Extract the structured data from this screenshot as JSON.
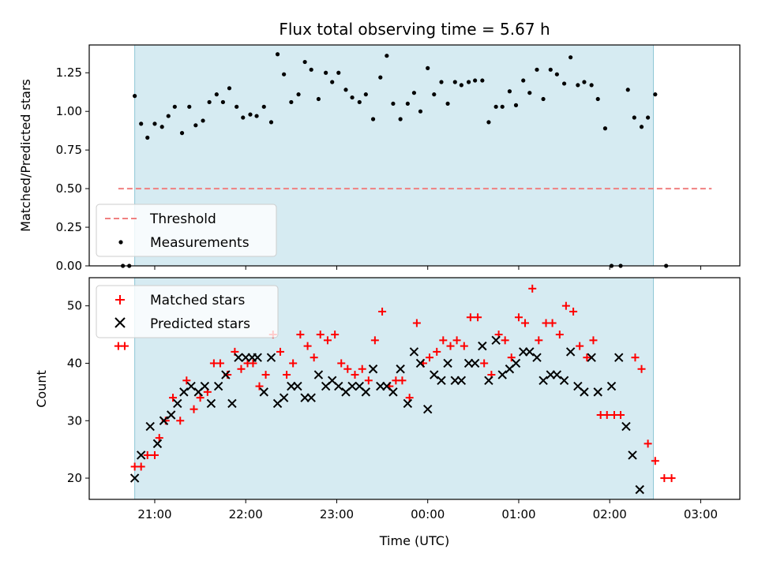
{
  "title": "Flux total observing time = 5.67 h",
  "chart_data": [
    {
      "type": "scatter",
      "ylabel": "Matched/Predicted stars",
      "ylim": [
        0,
        1.43
      ],
      "yticks": [
        "0.00",
        "0.25",
        "0.50",
        "0.75",
        "1.00",
        "1.25"
      ],
      "ytick_values": [
        0,
        0.25,
        0.5,
        0.75,
        1.0,
        1.25
      ],
      "legend_placement": "lower-left",
      "threshold": {
        "name": "Threshold",
        "value": 0.5,
        "x_start": -3.4,
        "x_end": 3.12,
        "color": "#f08080"
      },
      "measurements": {
        "name": "Measurements",
        "color": "#000000",
        "points": [
          [
            -3.35,
            0.0
          ],
          [
            -3.28,
            0.0
          ],
          [
            -3.22,
            1.1
          ],
          [
            -3.15,
            0.92
          ],
          [
            -3.08,
            0.83
          ],
          [
            -3.0,
            0.92
          ],
          [
            -2.92,
            0.9
          ],
          [
            -2.85,
            0.97
          ],
          [
            -2.78,
            1.03
          ],
          [
            -2.7,
            0.86
          ],
          [
            -2.62,
            1.03
          ],
          [
            -2.55,
            0.91
          ],
          [
            -2.47,
            0.94
          ],
          [
            -2.4,
            1.06
          ],
          [
            -2.32,
            1.11
          ],
          [
            -2.25,
            1.06
          ],
          [
            -2.18,
            1.15
          ],
          [
            -2.1,
            1.03
          ],
          [
            -2.03,
            0.96
          ],
          [
            -1.95,
            0.98
          ],
          [
            -1.88,
            0.97
          ],
          [
            -1.8,
            1.03
          ],
          [
            -1.72,
            0.93
          ],
          [
            -1.65,
            1.37
          ],
          [
            -1.58,
            1.24
          ],
          [
            -1.5,
            1.06
          ],
          [
            -1.42,
            1.11
          ],
          [
            -1.35,
            1.32
          ],
          [
            -1.28,
            1.27
          ],
          [
            -1.2,
            1.08
          ],
          [
            -1.12,
            1.25
          ],
          [
            -1.05,
            1.19
          ],
          [
            -0.98,
            1.25
          ],
          [
            -0.9,
            1.14
          ],
          [
            -0.83,
            1.09
          ],
          [
            -0.75,
            1.06
          ],
          [
            -0.68,
            1.11
          ],
          [
            -0.6,
            0.95
          ],
          [
            -0.52,
            1.22
          ],
          [
            -0.45,
            1.36
          ],
          [
            -0.38,
            1.05
          ],
          [
            -0.3,
            0.95
          ],
          [
            -0.22,
            1.05
          ],
          [
            -0.15,
            1.12
          ],
          [
            -0.08,
            1.0
          ],
          [
            0.0,
            1.28
          ],
          [
            0.07,
            1.11
          ],
          [
            0.15,
            1.19
          ],
          [
            0.22,
            1.05
          ],
          [
            0.3,
            1.19
          ],
          [
            0.37,
            1.17
          ],
          [
            0.45,
            1.19
          ],
          [
            0.52,
            1.2
          ],
          [
            0.6,
            1.2
          ],
          [
            0.67,
            0.93
          ],
          [
            0.75,
            1.03
          ],
          [
            0.82,
            1.03
          ],
          [
            0.9,
            1.13
          ],
          [
            0.97,
            1.04
          ],
          [
            1.05,
            1.2
          ],
          [
            1.12,
            1.12
          ],
          [
            1.2,
            1.27
          ],
          [
            1.27,
            1.08
          ],
          [
            1.35,
            1.27
          ],
          [
            1.42,
            1.24
          ],
          [
            1.5,
            1.18
          ],
          [
            1.57,
            1.35
          ],
          [
            1.65,
            1.17
          ],
          [
            1.72,
            1.19
          ],
          [
            1.8,
            1.17
          ],
          [
            1.87,
            1.08
          ],
          [
            1.95,
            0.89
          ],
          [
            2.02,
            0.0
          ],
          [
            2.12,
            0.0
          ],
          [
            2.2,
            1.14
          ],
          [
            2.27,
            0.96
          ],
          [
            2.35,
            0.9
          ],
          [
            2.42,
            0.96
          ],
          [
            2.5,
            1.11
          ],
          [
            2.62,
            0.0
          ]
        ]
      }
    },
    {
      "type": "scatter",
      "xlabel": "Time (UTC)",
      "ylabel": "Count",
      "ylim": [
        16.3,
        54.9
      ],
      "yticks": [
        "20",
        "30",
        "40",
        "50"
      ],
      "ytick_values": [
        20,
        30,
        40,
        50
      ],
      "legend_placement": "upper-left",
      "x_range_hours_from_midnight": [
        -3.72,
        3.43
      ],
      "xticks": [
        "21:00",
        "22:00",
        "23:00",
        "00:00",
        "01:00",
        "02:00",
        "03:00"
      ],
      "xtick_values": [
        -3,
        -2,
        -1,
        0,
        1,
        2,
        3
      ],
      "matched": {
        "name": "Matched stars",
        "color": "#ff0000",
        "points": [
          [
            -3.4,
            43
          ],
          [
            -3.33,
            43
          ],
          [
            -3.22,
            22
          ],
          [
            -3.15,
            22
          ],
          [
            -3.08,
            24
          ],
          [
            -3.0,
            24
          ],
          [
            -2.95,
            27
          ],
          [
            -2.88,
            30
          ],
          [
            -2.8,
            34
          ],
          [
            -2.72,
            30
          ],
          [
            -2.65,
            37
          ],
          [
            -2.57,
            32
          ],
          [
            -2.5,
            34
          ],
          [
            -2.42,
            35
          ],
          [
            -2.35,
            40
          ],
          [
            -2.28,
            40
          ],
          [
            -2.2,
            38
          ],
          [
            -2.12,
            42
          ],
          [
            -2.05,
            39
          ],
          [
            -1.98,
            40
          ],
          [
            -1.92,
            40
          ],
          [
            -1.85,
            36
          ],
          [
            -1.78,
            38
          ],
          [
            -1.7,
            45
          ],
          [
            -1.62,
            42
          ],
          [
            -1.55,
            38
          ],
          [
            -1.48,
            40
          ],
          [
            -1.4,
            45
          ],
          [
            -1.32,
            43
          ],
          [
            -1.25,
            41
          ],
          [
            -1.18,
            45
          ],
          [
            -1.1,
            44
          ],
          [
            -1.02,
            45
          ],
          [
            -0.95,
            40
          ],
          [
            -0.88,
            39
          ],
          [
            -0.8,
            38
          ],
          [
            -0.72,
            39
          ],
          [
            -0.65,
            37
          ],
          [
            -0.58,
            44
          ],
          [
            -0.5,
            49
          ],
          [
            -0.42,
            36
          ],
          [
            -0.35,
            37
          ],
          [
            -0.28,
            37
          ],
          [
            -0.2,
            34
          ],
          [
            -0.12,
            47
          ],
          [
            -0.05,
            40
          ],
          [
            0.02,
            41
          ],
          [
            0.1,
            42
          ],
          [
            0.17,
            44
          ],
          [
            0.25,
            43
          ],
          [
            0.32,
            44
          ],
          [
            0.4,
            43
          ],
          [
            0.47,
            48
          ],
          [
            0.55,
            48
          ],
          [
            0.62,
            40
          ],
          [
            0.7,
            38
          ],
          [
            0.78,
            45
          ],
          [
            0.85,
            44
          ],
          [
            0.92,
            41
          ],
          [
            1.0,
            48
          ],
          [
            1.07,
            47
          ],
          [
            1.15,
            53
          ],
          [
            1.22,
            44
          ],
          [
            1.3,
            47
          ],
          [
            1.37,
            47
          ],
          [
            1.45,
            45
          ],
          [
            1.52,
            50
          ],
          [
            1.6,
            49
          ],
          [
            1.67,
            43
          ],
          [
            1.75,
            41
          ],
          [
            1.82,
            44
          ],
          [
            1.9,
            31
          ],
          [
            1.97,
            31
          ],
          [
            2.05,
            31
          ],
          [
            2.12,
            31
          ],
          [
            2.28,
            41
          ],
          [
            2.35,
            39
          ],
          [
            2.42,
            26
          ],
          [
            2.5,
            23
          ],
          [
            2.6,
            20
          ],
          [
            2.68,
            20
          ]
        ]
      },
      "predicted": {
        "name": "Predicted stars",
        "color": "#000000",
        "points": [
          [
            -3.22,
            20
          ],
          [
            -3.15,
            24
          ],
          [
            -3.05,
            29
          ],
          [
            -2.97,
            26
          ],
          [
            -2.9,
            30
          ],
          [
            -2.82,
            31
          ],
          [
            -2.75,
            33
          ],
          [
            -2.68,
            35
          ],
          [
            -2.6,
            36
          ],
          [
            -2.52,
            35
          ],
          [
            -2.45,
            36
          ],
          [
            -2.38,
            33
          ],
          [
            -2.3,
            36
          ],
          [
            -2.22,
            38
          ],
          [
            -2.15,
            33
          ],
          [
            -2.08,
            41
          ],
          [
            -2.0,
            41
          ],
          [
            -1.93,
            41
          ],
          [
            -1.87,
            41
          ],
          [
            -1.8,
            35
          ],
          [
            -1.72,
            41
          ],
          [
            -1.65,
            33
          ],
          [
            -1.58,
            34
          ],
          [
            -1.5,
            36
          ],
          [
            -1.43,
            36
          ],
          [
            -1.35,
            34
          ],
          [
            -1.28,
            34
          ],
          [
            -1.2,
            38
          ],
          [
            -1.12,
            36
          ],
          [
            -1.05,
            37
          ],
          [
            -0.98,
            36
          ],
          [
            -0.9,
            35
          ],
          [
            -0.83,
            36
          ],
          [
            -0.75,
            36
          ],
          [
            -0.68,
            35
          ],
          [
            -0.6,
            39
          ],
          [
            -0.52,
            36
          ],
          [
            -0.45,
            36
          ],
          [
            -0.38,
            35
          ],
          [
            -0.3,
            39
          ],
          [
            -0.22,
            33
          ],
          [
            -0.15,
            42
          ],
          [
            -0.08,
            40
          ],
          [
            0.0,
            32
          ],
          [
            0.07,
            38
          ],
          [
            0.15,
            37
          ],
          [
            0.22,
            40
          ],
          [
            0.3,
            37
          ],
          [
            0.37,
            37
          ],
          [
            0.45,
            40
          ],
          [
            0.52,
            40
          ],
          [
            0.6,
            43
          ],
          [
            0.67,
            37
          ],
          [
            0.75,
            44
          ],
          [
            0.82,
            38
          ],
          [
            0.9,
            39
          ],
          [
            0.97,
            40
          ],
          [
            1.05,
            42
          ],
          [
            1.12,
            42
          ],
          [
            1.2,
            41
          ],
          [
            1.27,
            37
          ],
          [
            1.35,
            38
          ],
          [
            1.42,
            38
          ],
          [
            1.5,
            37
          ],
          [
            1.57,
            42
          ],
          [
            1.65,
            36
          ],
          [
            1.72,
            35
          ],
          [
            1.8,
            41
          ],
          [
            1.87,
            35
          ],
          [
            2.02,
            36
          ],
          [
            2.1,
            41
          ],
          [
            2.18,
            29
          ],
          [
            2.25,
            24
          ],
          [
            2.33,
            18
          ]
        ]
      }
    }
  ],
  "shaded_span": {
    "x_start": -3.22,
    "x_end": 2.48,
    "color": "#add8e6",
    "alpha": 0.5
  }
}
